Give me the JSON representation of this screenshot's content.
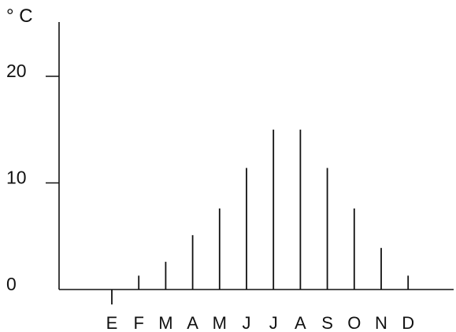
{
  "chart_data": {
    "type": "bar",
    "title": "",
    "xlabel": "",
    "ylabel": "° C",
    "categories": [
      "E",
      "F",
      "M",
      "A",
      "M",
      "J",
      "J",
      "A",
      "S",
      "O",
      "N",
      "D"
    ],
    "series": [
      {
        "values": [
          -1.4,
          1.3,
          2.6,
          5.1,
          7.6,
          11.4,
          15.0,
          15.0,
          11.4,
          7.6,
          3.9,
          1.3
        ]
      }
    ],
    "y_ticks": [
      "0",
      "10",
      "20"
    ],
    "ylim": [
      0,
      25
    ],
    "grid": false,
    "legend": "none"
  }
}
